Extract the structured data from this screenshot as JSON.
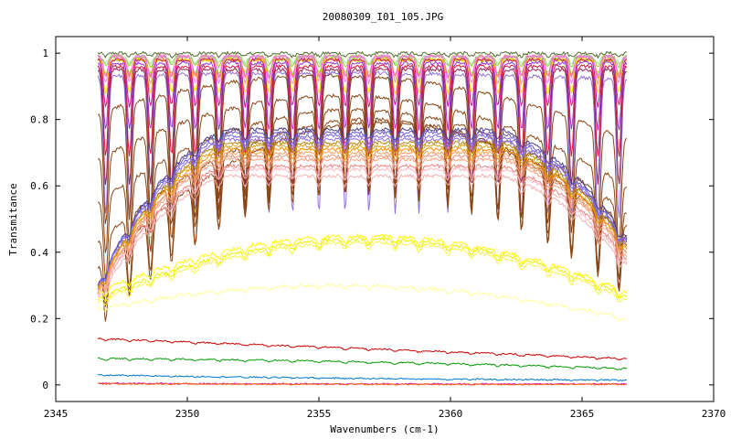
{
  "chart_data": {
    "type": "line",
    "title": "20080309_I01_105.JPG",
    "xlabel": "Wavenumbers (cm-1)",
    "ylabel": "Transmitance",
    "xlim": [
      2345,
      2370
    ],
    "ylim": [
      -0.05,
      1.05
    ],
    "x_ticks": [
      2345,
      2350,
      2355,
      2360,
      2365,
      2370
    ],
    "x_tick_labels": [
      "2345",
      "2350",
      "2355",
      "2360",
      "2365",
      "2370"
    ],
    "y_ticks": [
      0,
      0.2,
      0.4,
      0.6,
      0.8,
      1
    ],
    "y_tick_labels": [
      "0",
      "0.2",
      "0.4",
      "0.6",
      "0.8",
      "1"
    ],
    "grid": false,
    "legend": "none",
    "x_range_data": [
      2346.6,
      2366.7
    ],
    "absorption_lines": [
      2346.9,
      2347.8,
      2348.6,
      2349.4,
      2350.3,
      2351.2,
      2352.2,
      2353.1,
      2354.0,
      2355.0,
      2356.0,
      2356.9,
      2357.9,
      2358.8,
      2359.9,
      2360.8,
      2361.8,
      2362.7,
      2363.7,
      2364.6,
      2365.6,
      2366.4
    ],
    "series": [
      {
        "family": "upper",
        "color": "#556b2f",
        "baseline": [
          1.0,
          1.0,
          1.0
        ],
        "depth": 0.01
      },
      {
        "family": "upper",
        "color": "#90ee90",
        "baseline": [
          0.99,
          0.99,
          0.99
        ],
        "depth": 0.02
      },
      {
        "family": "upper",
        "color": "#9acd32",
        "baseline": [
          0.99,
          0.99,
          0.99
        ],
        "depth": 0.03
      },
      {
        "family": "upper",
        "color": "#7fff00",
        "baseline": [
          0.98,
          0.98,
          0.98
        ],
        "depth": 0.04
      },
      {
        "family": "upper",
        "color": "#ff8c00",
        "baseline": [
          0.98,
          0.98,
          0.98
        ],
        "depth": 0.05
      },
      {
        "family": "upper",
        "color": "#ff69b4",
        "baseline": [
          0.99,
          0.99,
          0.99
        ],
        "depth": 0.06
      },
      {
        "family": "upper",
        "color": "#ee82ee",
        "baseline": [
          0.99,
          0.99,
          0.99
        ],
        "depth": 0.08
      },
      {
        "family": "upper",
        "color": "#ffd700",
        "baseline": [
          0.98,
          0.98,
          0.98
        ],
        "depth": 0.1
      },
      {
        "family": "upper",
        "color": "#c71585",
        "baseline": [
          0.98,
          0.98,
          0.98
        ],
        "depth": 0.14
      },
      {
        "family": "upper",
        "color": "#9932cc",
        "baseline": [
          0.97,
          0.97,
          0.97
        ],
        "depth": 0.2
      },
      {
        "family": "upper",
        "color": "#dc143c",
        "baseline": [
          0.96,
          0.96,
          0.96
        ],
        "depth": 0.27
      },
      {
        "family": "upper",
        "color": "#8b2252",
        "baseline": [
          0.95,
          0.95,
          0.95
        ],
        "depth": 0.35
      },
      {
        "family": "upper",
        "color": "#9370db",
        "baseline": [
          0.93,
          0.94,
          0.92
        ],
        "depth": 0.42
      },
      {
        "family": "broad",
        "color": "#8b4513",
        "baseline": [
          0.82,
          0.93,
          0.74
        ],
        "depth": 0.35
      },
      {
        "family": "broad",
        "color": "#8b4513",
        "baseline": [
          0.68,
          0.87,
          0.6
        ],
        "depth": 0.3
      },
      {
        "family": "broad",
        "color": "#8b4513",
        "baseline": [
          0.55,
          0.83,
          0.52
        ],
        "depth": 0.25
      },
      {
        "family": "broad",
        "color": "#8b4513",
        "baseline": [
          0.43,
          0.8,
          0.48
        ],
        "depth": 0.22
      },
      {
        "family": "broad",
        "color": "#8b4513",
        "baseline": [
          0.35,
          0.79,
          0.45
        ],
        "depth": 0.18
      },
      {
        "family": "hump",
        "color": "#483d8b",
        "baseline": [
          0.3,
          0.77,
          0.44
        ],
        "depth": 0.03
      },
      {
        "family": "hump",
        "color": "#6a5acd",
        "baseline": [
          0.3,
          0.76,
          0.43
        ],
        "depth": 0.03
      },
      {
        "family": "hump",
        "color": "#7b68ee",
        "baseline": [
          0.3,
          0.75,
          0.43
        ],
        "depth": 0.03
      },
      {
        "family": "hump",
        "color": "#9370db",
        "baseline": [
          0.29,
          0.74,
          0.42
        ],
        "depth": 0.03
      },
      {
        "family": "hump",
        "color": "#b8860b",
        "baseline": [
          0.29,
          0.73,
          0.42
        ],
        "depth": 0.03
      },
      {
        "family": "hump",
        "color": "#daa520",
        "baseline": [
          0.29,
          0.72,
          0.41
        ],
        "depth": 0.03
      },
      {
        "family": "hump",
        "color": "#ff8c00",
        "baseline": [
          0.29,
          0.71,
          0.41
        ],
        "depth": 0.03
      },
      {
        "family": "hump",
        "color": "#f4a460",
        "baseline": [
          0.28,
          0.7,
          0.4
        ],
        "depth": 0.03
      },
      {
        "family": "hump",
        "color": "#e9967a",
        "baseline": [
          0.28,
          0.69,
          0.4
        ],
        "depth": 0.03
      },
      {
        "family": "hump",
        "color": "#ffa07a",
        "baseline": [
          0.28,
          0.68,
          0.39
        ],
        "depth": 0.03
      },
      {
        "family": "hump",
        "color": "#f08080",
        "baseline": [
          0.27,
          0.66,
          0.38
        ],
        "depth": 0.03
      },
      {
        "family": "hump",
        "color": "#ffb6c1",
        "baseline": [
          0.27,
          0.65,
          0.37
        ],
        "depth": 0.03
      },
      {
        "family": "hump",
        "color": "#f4b0b0",
        "baseline": [
          0.26,
          0.63,
          0.36
        ],
        "depth": 0.03
      },
      {
        "family": "yellow",
        "color": "#ffff00",
        "baseline": [
          0.28,
          0.45,
          0.28
        ],
        "depth": 0.02
      },
      {
        "family": "yellow",
        "color": "#eeee00",
        "baseline": [
          0.26,
          0.44,
          0.27
        ],
        "depth": 0.02
      },
      {
        "family": "yellow",
        "color": "#f5f54a",
        "baseline": [
          0.25,
          0.43,
          0.26
        ],
        "depth": 0.02
      },
      {
        "family": "yellow",
        "color": "#ffff99",
        "baseline": [
          0.23,
          0.3,
          0.2
        ],
        "depth": 0.01
      },
      {
        "family": "low",
        "color": "#cc0000",
        "baseline": [
          0.14,
          0.11,
          0.08
        ],
        "depth": 0.005
      },
      {
        "family": "low",
        "color": "#009900",
        "baseline": [
          0.08,
          0.07,
          0.05
        ],
        "depth": 0.005
      },
      {
        "family": "low",
        "color": "#0077cc",
        "baseline": [
          0.03,
          0.02,
          0.015
        ],
        "depth": 0.002
      },
      {
        "family": "low",
        "color": "#cc00cc",
        "baseline": [
          0.005,
          0.003,
          0.003
        ],
        "depth": 0.001
      },
      {
        "family": "low",
        "color": "#ff6600",
        "baseline": [
          0.004,
          0.002,
          0.002
        ],
        "depth": 0.001
      }
    ]
  }
}
